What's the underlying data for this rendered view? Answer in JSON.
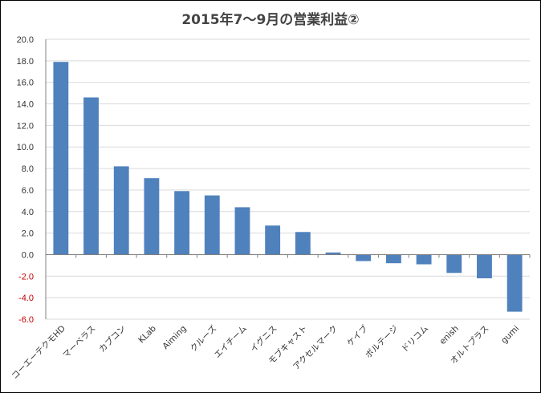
{
  "chart_data": {
    "type": "bar",
    "title": "2015年7〜9月の営業利益②",
    "xlabel": "",
    "ylabel": "",
    "ylim": [
      -6.0,
      20.0
    ],
    "ytick_step": 2.0,
    "grid": true,
    "legend": "none",
    "categories": [
      "コーエーテクモHD",
      "マーベラス",
      "カプコン",
      "KLab",
      "Aiming",
      "クルーズ",
      "エイチーム",
      "イグニス",
      "モブキャスト",
      "アクセルマーク",
      "ケイブ",
      "ボルテージ",
      "ドリコム",
      "enish",
      "オルトプラス",
      "gumi"
    ],
    "values": [
      17.9,
      14.6,
      8.2,
      7.1,
      5.9,
      5.5,
      4.4,
      2.7,
      2.1,
      0.2,
      -0.6,
      -0.8,
      -0.9,
      -1.7,
      -2.2,
      -5.3
    ],
    "bar_color": "#4F81BD",
    "negative_tick_color": "#C00000",
    "positive_tick_color": "#333333"
  }
}
